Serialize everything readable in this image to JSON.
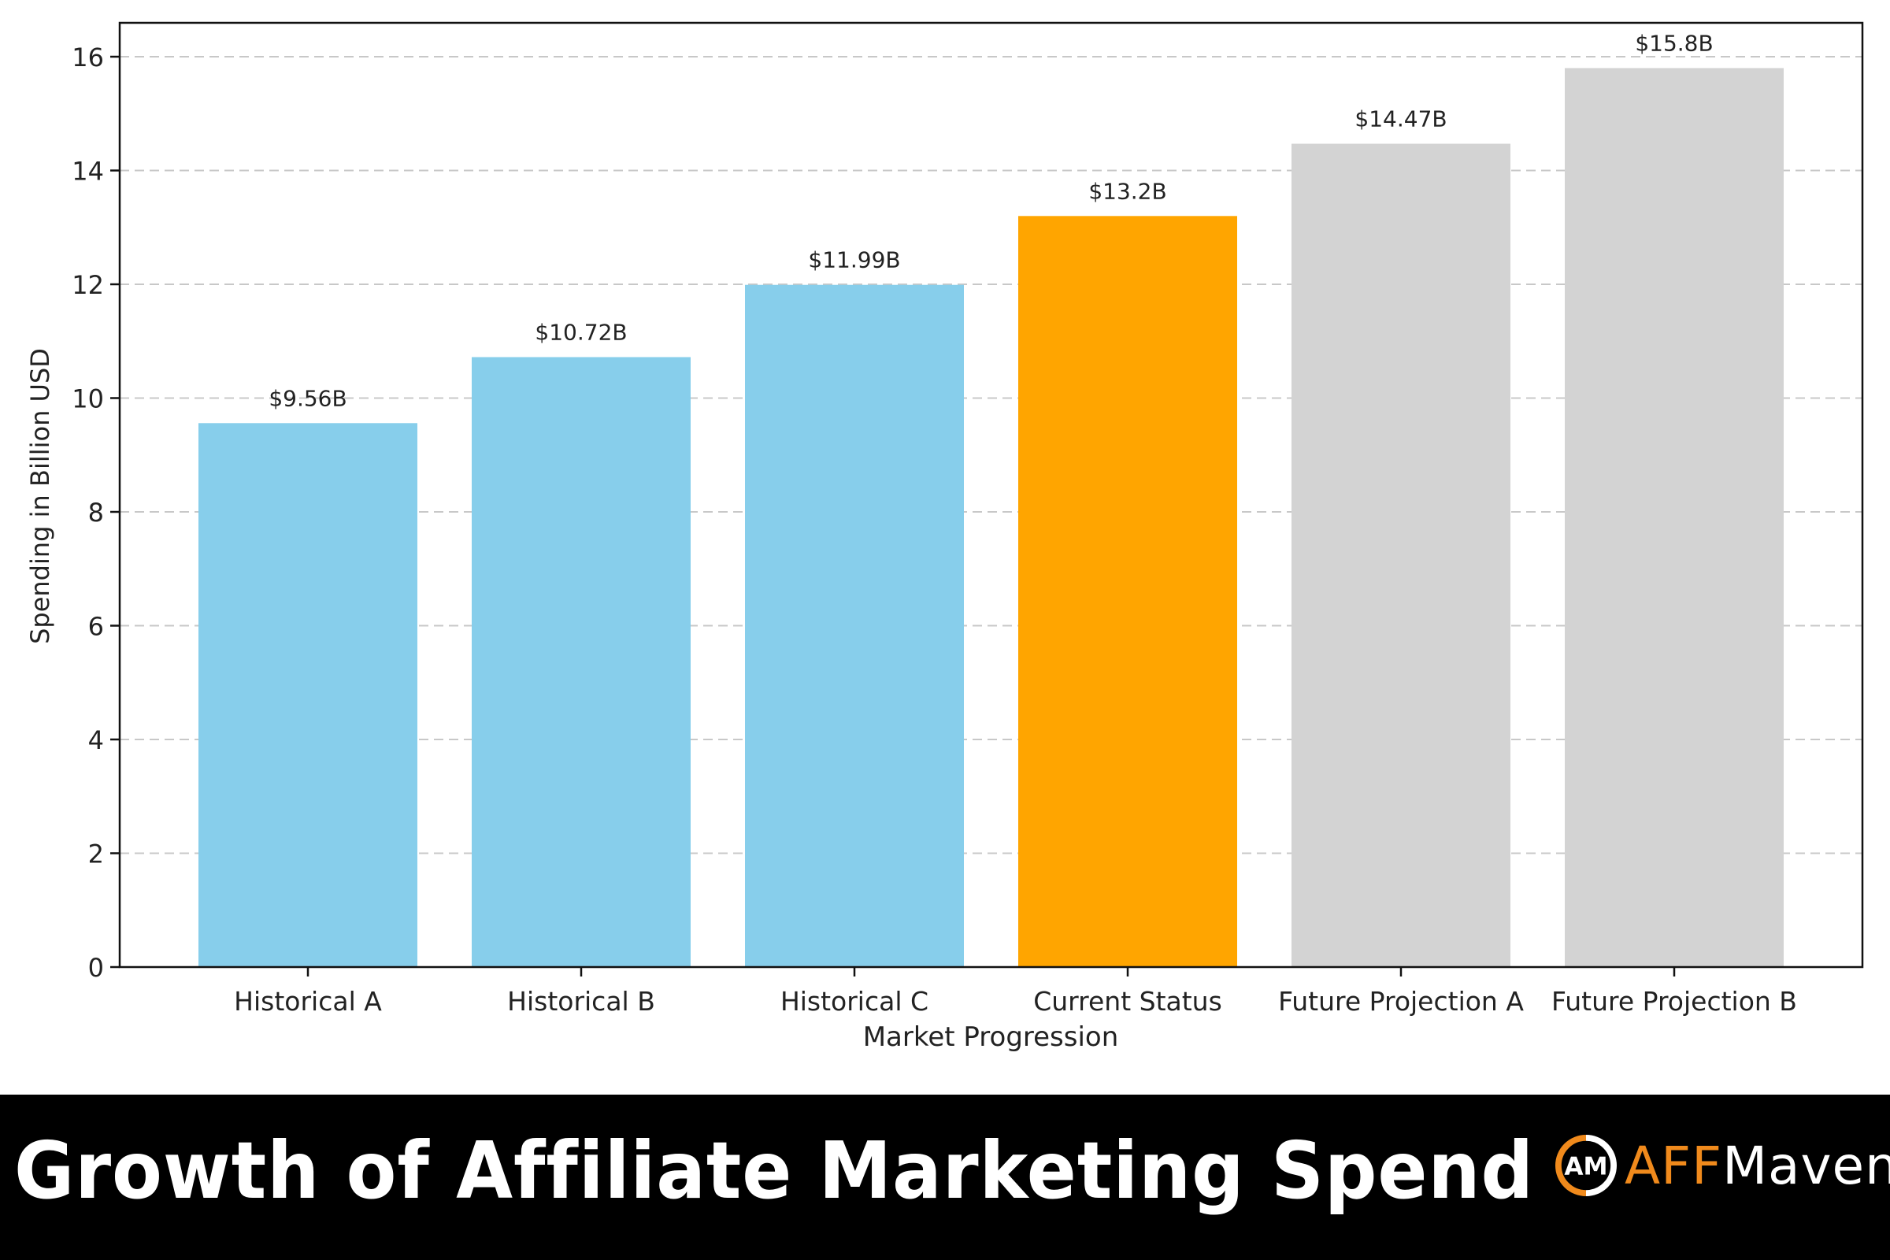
{
  "chart_data": {
    "type": "bar",
    "title": "",
    "xlabel": "Market Progression",
    "ylabel": "Spending in Billion USD",
    "ylim": [
      0,
      16.5
    ],
    "yticks": [
      0,
      2,
      4,
      6,
      8,
      10,
      12,
      14,
      16
    ],
    "grid": {
      "axis": "y",
      "style": "dashed",
      "color": "#cccccc"
    },
    "legend": null,
    "categories": [
      "Historical A",
      "Historical B",
      "Historical C",
      "Current Status",
      "Future Projection A",
      "Future Projection B"
    ],
    "values": [
      9.56,
      10.72,
      11.99,
      13.2,
      14.47,
      15.8
    ],
    "value_labels": [
      "$9.56B",
      "$10.72B",
      "$11.99B",
      "$13.2B",
      "$14.47B",
      "$15.8B"
    ],
    "colors": [
      "#87ceeb",
      "#87ceeb",
      "#87ceeb",
      "#ffa500",
      "#d3d3d3",
      "#d3d3d3"
    ]
  },
  "footer": {
    "title": "Growth of Affiliate Marketing Spend",
    "brand_prefix": "AFF",
    "brand_suffix": "Maven",
    "brand_mark": "AM"
  }
}
